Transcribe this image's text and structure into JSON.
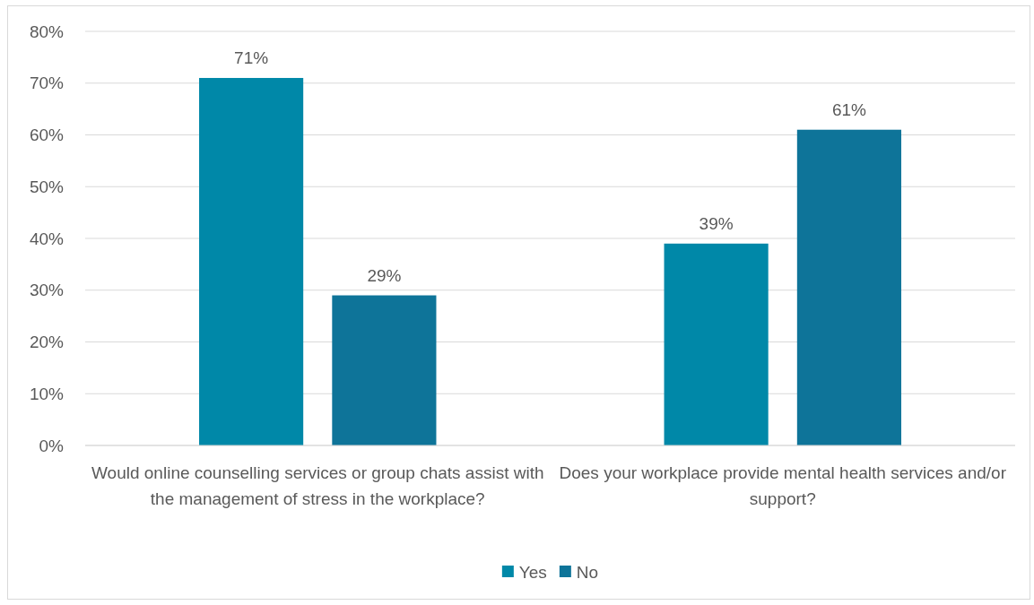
{
  "chart_data": {
    "type": "bar",
    "categories": [
      "Would online counselling services or group chats assist with the management of stress in the workplace?",
      "Does your workplace provide mental health services and/or support?"
    ],
    "series": [
      {
        "name": "Yes",
        "color": "#0088a8",
        "values": [
          71,
          39
        ],
        "value_labels": [
          "71%",
          "39%"
        ]
      },
      {
        "name": "No",
        "color": "#0e7499",
        "values": [
          29,
          61
        ],
        "value_labels": [
          "29%",
          "61%"
        ]
      }
    ],
    "ylim": [
      0,
      80
    ],
    "yticks": [
      {
        "value": 0,
        "label": "0%"
      },
      {
        "value": 10,
        "label": "10%"
      },
      {
        "value": 20,
        "label": "20%"
      },
      {
        "value": 30,
        "label": "30%"
      },
      {
        "value": 40,
        "label": "40%"
      },
      {
        "value": 50,
        "label": "50%"
      },
      {
        "value": 60,
        "label": "60%"
      },
      {
        "value": 70,
        "label": "70%"
      },
      {
        "value": 80,
        "label": "80%"
      }
    ],
    "grid": "y",
    "legend": "bottom"
  }
}
